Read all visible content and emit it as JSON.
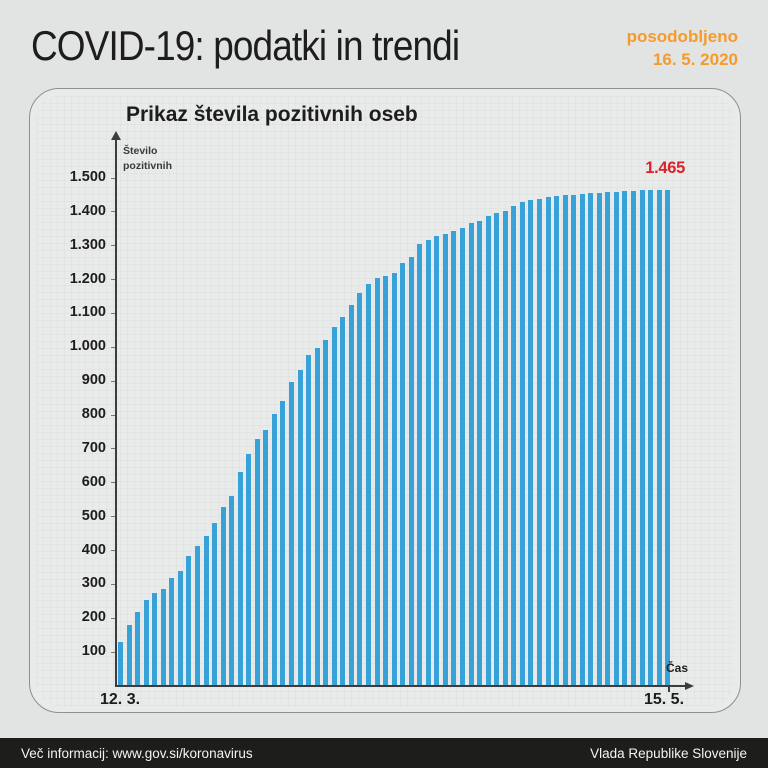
{
  "header": {
    "title": "COVID-19: podatki in trendi",
    "updated_label": "posodobljeno",
    "updated_date": "16. 5. 2020"
  },
  "chart_data": {
    "type": "bar",
    "title": "Prikaz števila pozitivnih oseb",
    "y_axis_label_lines": [
      "Število",
      "pozitivnih"
    ],
    "x_axis_label": "Čas",
    "x_tick_labels": [
      "12. 3.",
      "15. 5."
    ],
    "y_tick_labels": [
      "1.500",
      "1.400",
      "1.300",
      "1.200",
      "1.100",
      "1.000",
      "900",
      "800",
      "700",
      "600",
      "500",
      "400",
      "300",
      "200",
      "100"
    ],
    "ylim": [
      0,
      1500
    ],
    "grid": "faint graph paper",
    "legend": "none",
    "peak_label": "1.465",
    "values": [
      131,
      181,
      219,
      253,
      275,
      286,
      319,
      341,
      383,
      414,
      442,
      480,
      528,
      562,
      632,
      684,
      730,
      756,
      802,
      841,
      897,
      934,
      977,
      997,
      1021,
      1059,
      1091,
      1124,
      1160,
      1188,
      1205,
      1212,
      1220,
      1248,
      1268,
      1304,
      1317,
      1330,
      1335,
      1344,
      1353,
      1366,
      1373,
      1388,
      1396,
      1402,
      1418,
      1429,
      1434,
      1439,
      1445,
      1448,
      1449,
      1450,
      1454,
      1455,
      1457,
      1459,
      1460,
      1461,
      1463,
      1464,
      1464,
      1465,
      1465
    ],
    "bar_color": "#36a2d7",
    "annotation_color": "#d8232a"
  },
  "footer": {
    "info": "Več informacij: www.gov.si/koronavirus",
    "source": "Vlada Republike Slovenije"
  },
  "colors": {
    "accent_orange": "#f59b2c",
    "peak_red": "#d8232a",
    "bar_blue": "#36a2d7",
    "footer_bg": "#1d1d1b",
    "background": "#e2e3e3"
  }
}
